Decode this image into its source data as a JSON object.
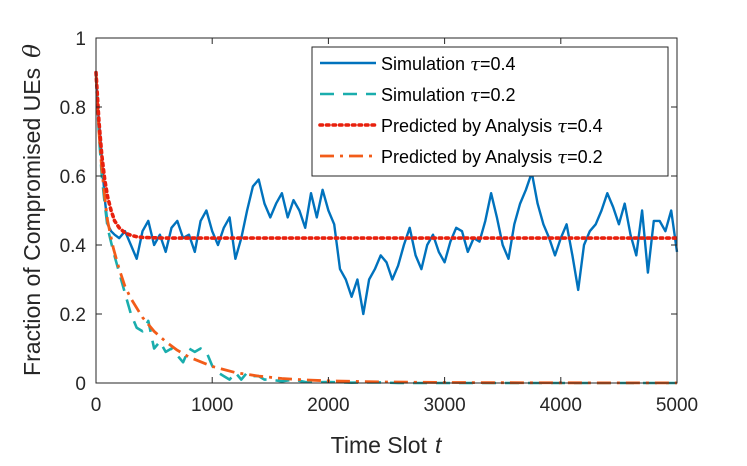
{
  "chart_data": {
    "type": "line",
    "title": "",
    "xlabel": "Time Slot",
    "xlabel_var": "t",
    "ylabel": "Fraction of Compromised UEs",
    "ylabel_var": "θ",
    "xlim": [
      0,
      5000
    ],
    "ylim": [
      0,
      1
    ],
    "xticks": [
      0,
      1000,
      2000,
      3000,
      4000,
      5000
    ],
    "yticks": [
      0,
      0.2,
      0.4,
      0.6,
      0.8,
      1
    ],
    "xtick_labels": [
      "0",
      "1000",
      "2000",
      "3000",
      "4000",
      "5000"
    ],
    "ytick_labels": [
      "0",
      "0.2",
      "0.4",
      "0.6",
      "0.8",
      "1"
    ],
    "grid": false,
    "legend_position": "top-right",
    "series": [
      {
        "name": "Simulation τ=0.4",
        "label": "Simulation ",
        "var": "τ",
        "suffix": "=0.4",
        "style": "solid",
        "color": "#0072BD",
        "x": [
          0,
          20,
          40,
          60,
          80,
          100,
          130,
          160,
          200,
          250,
          300,
          350,
          400,
          450,
          500,
          550,
          600,
          650,
          700,
          750,
          800,
          850,
          900,
          950,
          1000,
          1050,
          1100,
          1150,
          1200,
          1250,
          1300,
          1350,
          1400,
          1450,
          1500,
          1550,
          1600,
          1650,
          1700,
          1750,
          1800,
          1850,
          1900,
          1950,
          2000,
          2050,
          2100,
          2150,
          2200,
          2250,
          2300,
          2350,
          2400,
          2450,
          2500,
          2550,
          2600,
          2650,
          2700,
          2750,
          2800,
          2850,
          2900,
          2950,
          3000,
          3050,
          3100,
          3150,
          3200,
          3250,
          3300,
          3350,
          3400,
          3450,
          3500,
          3550,
          3600,
          3650,
          3700,
          3750,
          3800,
          3850,
          3900,
          3950,
          4000,
          4050,
          4100,
          4150,
          4200,
          4250,
          4300,
          4350,
          4400,
          4450,
          4500,
          4550,
          4600,
          4650,
          4700,
          4750,
          4800,
          4850,
          4900,
          4950,
          5000
        ],
        "values": [
          0.9,
          0.78,
          0.7,
          0.6,
          0.52,
          0.46,
          0.44,
          0.43,
          0.42,
          0.44,
          0.4,
          0.36,
          0.44,
          0.47,
          0.4,
          0.43,
          0.38,
          0.45,
          0.47,
          0.42,
          0.43,
          0.38,
          0.47,
          0.5,
          0.44,
          0.4,
          0.45,
          0.48,
          0.36,
          0.42,
          0.5,
          0.57,
          0.59,
          0.52,
          0.48,
          0.52,
          0.55,
          0.48,
          0.53,
          0.5,
          0.45,
          0.55,
          0.48,
          0.56,
          0.5,
          0.46,
          0.33,
          0.3,
          0.25,
          0.3,
          0.2,
          0.3,
          0.33,
          0.37,
          0.35,
          0.3,
          0.34,
          0.4,
          0.45,
          0.37,
          0.33,
          0.4,
          0.43,
          0.38,
          0.35,
          0.41,
          0.45,
          0.44,
          0.38,
          0.42,
          0.41,
          0.47,
          0.55,
          0.48,
          0.4,
          0.36,
          0.46,
          0.52,
          0.56,
          0.61,
          0.52,
          0.46,
          0.42,
          0.37,
          0.42,
          0.46,
          0.37,
          0.27,
          0.4,
          0.44,
          0.46,
          0.5,
          0.55,
          0.51,
          0.46,
          0.52,
          0.43,
          0.37,
          0.5,
          0.32,
          0.47,
          0.47,
          0.44,
          0.5,
          0.38
        ]
      },
      {
        "name": "Simulation τ=0.2",
        "label": "Simulation ",
        "var": "τ",
        "suffix": "=0.2",
        "style": "dashed",
        "color": "#1AADAD",
        "x": [
          0,
          25,
          50,
          75,
          100,
          150,
          200,
          250,
          300,
          350,
          400,
          450,
          500,
          550,
          600,
          650,
          700,
          750,
          800,
          850,
          900,
          950,
          1000,
          1050,
          1100,
          1150,
          1200,
          1250,
          1300,
          1350,
          1400,
          1450,
          1500,
          1600,
          1700,
          1800,
          1900,
          2000,
          2100,
          2200,
          2400,
          2600,
          2800,
          3000,
          3500,
          4000,
          4500,
          5000
        ],
        "values": [
          0.9,
          0.72,
          0.6,
          0.52,
          0.45,
          0.38,
          0.32,
          0.26,
          0.2,
          0.16,
          0.15,
          0.18,
          0.1,
          0.12,
          0.09,
          0.1,
          0.08,
          0.06,
          0.1,
          0.09,
          0.1,
          0.09,
          0.05,
          0.03,
          0.02,
          0.01,
          0.03,
          0.01,
          0.03,
          0.02,
          0.02,
          0.01,
          0.01,
          0.005,
          0.01,
          0.003,
          0.002,
          0.003,
          0.002,
          0.001,
          0.002,
          0.0,
          0.0,
          0.0,
          0.0,
          0.0,
          0.0,
          0.0
        ]
      },
      {
        "name": "Predicted by Analysis τ=0.4",
        "label": "Predicted by Analysis ",
        "var": "τ",
        "suffix": "=0.4",
        "style": "dotted",
        "color": "#E8200D",
        "x": [
          0,
          25,
          50,
          75,
          100,
          130,
          160,
          200,
          250,
          300,
          350,
          400,
          500,
          600,
          800,
          1000,
          2000,
          3000,
          4000,
          5000
        ],
        "values": [
          0.9,
          0.76,
          0.66,
          0.59,
          0.54,
          0.5,
          0.47,
          0.45,
          0.435,
          0.428,
          0.424,
          0.422,
          0.421,
          0.42,
          0.42,
          0.42,
          0.42,
          0.42,
          0.42,
          0.42
        ]
      },
      {
        "name": "Predicted by Analysis τ=0.2",
        "label": "Predicted by Analysis ",
        "var": "τ",
        "suffix": "=0.2",
        "style": "dashdot",
        "color": "#F25C19",
        "x": [
          0,
          25,
          50,
          75,
          100,
          150,
          200,
          250,
          300,
          400,
          500,
          600,
          700,
          800,
          1000,
          1200,
          1400,
          1600,
          1800,
          2000,
          2500,
          3000,
          3500,
          4000,
          4500,
          5000
        ],
        "values": [
          0.9,
          0.73,
          0.62,
          0.54,
          0.47,
          0.39,
          0.33,
          0.28,
          0.245,
          0.19,
          0.15,
          0.12,
          0.095,
          0.075,
          0.048,
          0.03,
          0.02,
          0.013,
          0.009,
          0.006,
          0.003,
          0.0015,
          0.001,
          0.0005,
          0.0003,
          0.0002
        ]
      }
    ]
  }
}
